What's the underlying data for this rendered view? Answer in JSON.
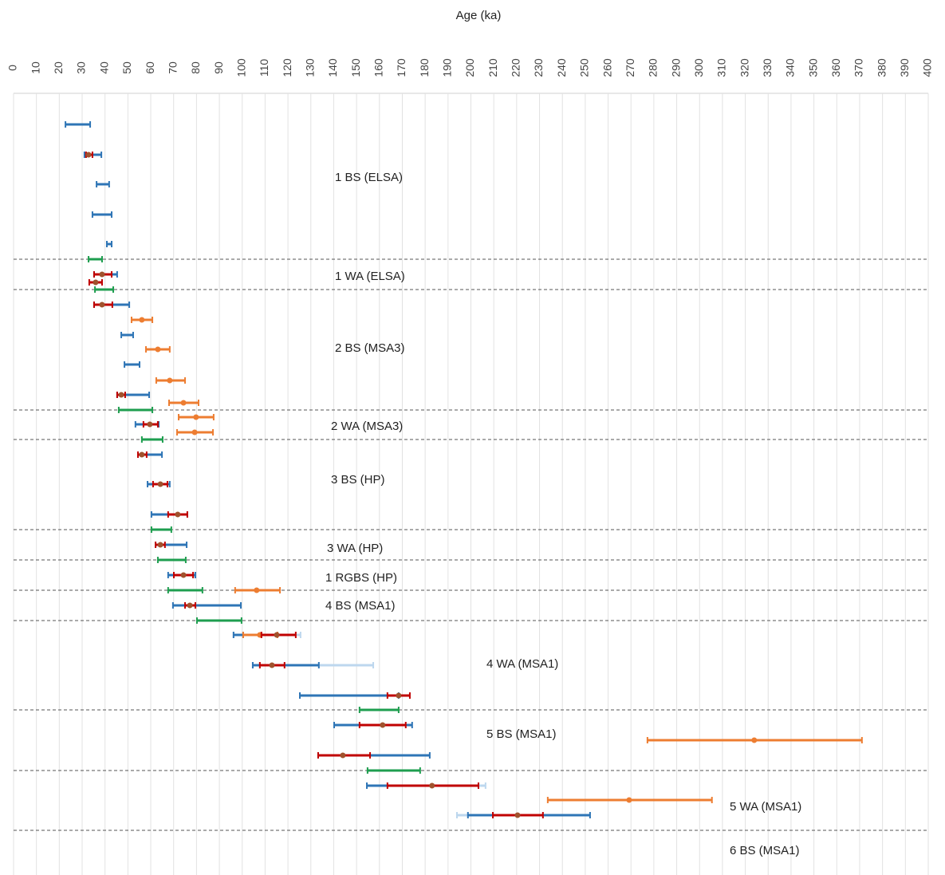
{
  "chart_data": {
    "type": "range",
    "xlabel": "Age (ka)",
    "xlim": [
      0,
      400
    ],
    "xticks": [
      0,
      10,
      20,
      30,
      40,
      50,
      60,
      70,
      80,
      90,
      100,
      110,
      120,
      130,
      140,
      150,
      160,
      170,
      180,
      190,
      200,
      210,
      220,
      230,
      240,
      250,
      260,
      270,
      280,
      290,
      300,
      310,
      320,
      330,
      340,
      350,
      360,
      370,
      380,
      390,
      400
    ],
    "grid": true,
    "annotations": [
      "1 BS (ELSA)",
      "1 WA (ELSA)",
      "2 BS (MSA3)",
      "2 WA (MSA3)",
      "3 BS (HP)",
      "3 WA (HP)",
      "1 RGBS (HP)",
      "4 BS (MSA1)",
      "4 WA (MSA1)",
      "5 BS (MSA1)",
      "5 WA (MSA1)",
      "6 BS (MSA1)"
    ],
    "bars": [
      {
        "color": "#2e75b6",
        "low": 22.7,
        "high": 33.5
      },
      {
        "color": "#2e75b6",
        "low": 31,
        "high": 38.4
      },
      {
        "color": "#c00000",
        "low": 31.7,
        "high": 34.5,
        "point": 32.8
      },
      {
        "color": "#2e75b6",
        "low": 36.3,
        "high": 41.8
      },
      {
        "color": "#2e75b6",
        "low": 34.5,
        "high": 42.9
      },
      {
        "color": "#2e75b6",
        "low": 40.8,
        "high": 42.9
      },
      {
        "color": "#1e9e4f",
        "low": 32.8,
        "high": 38.7
      },
      {
        "color": "#2e75b6",
        "low": 35.2,
        "high": 45.3
      },
      {
        "color": "#c00000",
        "low": 35.2,
        "high": 42.9,
        "point": 38.7
      },
      {
        "color": "#c00000",
        "low": 33.1,
        "high": 38.7,
        "point": 35.9
      },
      {
        "color": "#1e9e4f",
        "low": 35.6,
        "high": 43.6
      },
      {
        "color": "#2e75b6",
        "low": 35.2,
        "high": 50.6
      },
      {
        "color": "#c00000",
        "low": 35.2,
        "high": 43.2,
        "point": 38.7
      },
      {
        "color": "#ed7d31",
        "low": 51.6,
        "high": 60.7,
        "point": 56.1
      },
      {
        "color": "#2e75b6",
        "low": 47.1,
        "high": 52.3
      },
      {
        "color": "#ed7d31",
        "low": 57.9,
        "high": 68.3,
        "point": 63.1
      },
      {
        "color": "#2e75b6",
        "low": 48.5,
        "high": 55.1
      },
      {
        "color": "#ed7d31",
        "low": 62.4,
        "high": 75,
        "point": 68.3
      },
      {
        "color": "#2e75b6",
        "low": 45.3,
        "high": 59.3
      },
      {
        "color": "#c00000",
        "low": 45.3,
        "high": 48.8,
        "point": 47.1
      },
      {
        "color": "#ed7d31",
        "low": 68,
        "high": 80.9,
        "point": 74.3
      },
      {
        "color": "#1e9e4f",
        "low": 46,
        "high": 60.7
      },
      {
        "color": "#ed7d31",
        "low": 72.2,
        "high": 87.5,
        "point": 79.8
      },
      {
        "color": "#2e75b6",
        "low": 53.3,
        "high": 63.5
      },
      {
        "color": "#c00000",
        "low": 56.8,
        "high": 63.1,
        "point": 59.6
      },
      {
        "color": "#ed7d31",
        "low": 71.5,
        "high": 87.2,
        "point": 79.2
      },
      {
        "color": "#1e9e4f",
        "low": 56.1,
        "high": 65.2
      },
      {
        "color": "#2e75b6",
        "low": 54.4,
        "high": 64.9
      },
      {
        "color": "#c00000",
        "low": 54.4,
        "high": 58.2,
        "point": 56.1
      },
      {
        "color": "#2e75b6",
        "low": 58.6,
        "high": 68.3
      },
      {
        "color": "#c00000",
        "low": 61,
        "high": 67.3,
        "point": 64.2
      },
      {
        "color": "#2e75b6",
        "low": 60.3,
        "high": 76
      },
      {
        "color": "#c00000",
        "low": 67.6,
        "high": 76,
        "point": 71.8
      },
      {
        "color": "#1e9e4f",
        "low": 60.3,
        "high": 69
      },
      {
        "color": "#2e75b6",
        "low": 62.1,
        "high": 75.7
      },
      {
        "color": "#c00000",
        "low": 62.1,
        "high": 66.2,
        "point": 64.2
      },
      {
        "color": "#1e9e4f",
        "low": 63.1,
        "high": 75.3
      },
      {
        "color": "#2e75b6",
        "low": 67.6,
        "high": 79.5
      },
      {
        "color": "#c00000",
        "low": 70.1,
        "high": 78.5,
        "point": 74.3
      },
      {
        "color": "#ed7d31",
        "low": 96.9,
        "high": 116.5,
        "point": 106.3
      },
      {
        "color": "#1e9e4f",
        "low": 67.6,
        "high": 82.6
      },
      {
        "color": "#2e75b6",
        "low": 69.7,
        "high": 99.4
      },
      {
        "color": "#c00000",
        "low": 75,
        "high": 79.5,
        "point": 77.1
      },
      {
        "color": "#1e9e4f",
        "low": 80.2,
        "high": 99.7
      },
      {
        "color": "#bdd7ee",
        "low": 96.2,
        "high": 125.5
      },
      {
        "color": "#2e75b6",
        "low": 96.2,
        "high": 100.4
      },
      {
        "color": "#ed7d31",
        "low": 100.4,
        "high": 115.4,
        "point": 107.7
      },
      {
        "color": "#c00000",
        "low": 108.4,
        "high": 123.4,
        "point": 115.1
      },
      {
        "color": "#bdd7ee",
        "low": 104.6,
        "high": 157.3
      },
      {
        "color": "#2e75b6",
        "low": 104.6,
        "high": 133.5
      },
      {
        "color": "#c00000",
        "low": 107.7,
        "high": 118.5,
        "point": 113
      },
      {
        "color": "#2e75b6",
        "low": 125.2,
        "high": 168.4
      },
      {
        "color": "#c00000",
        "low": 163.5,
        "high": 173.3,
        "point": 168.4
      },
      {
        "color": "#1e9e4f",
        "low": 151.3,
        "high": 168.4
      },
      {
        "color": "#2e75b6",
        "low": 140.2,
        "high": 174.3
      },
      {
        "color": "#c00000",
        "low": 151.3,
        "high": 171.5,
        "point": 161.4
      },
      {
        "color": "#ed7d31",
        "low": 277.2,
        "high": 371,
        "point": 323.9
      },
      {
        "color": "#2e75b6",
        "low": 133.2,
        "high": 182
      },
      {
        "color": "#c00000",
        "low": 133.2,
        "high": 155.9,
        "point": 144
      },
      {
        "color": "#1e9e4f",
        "low": 154.8,
        "high": 177.8
      },
      {
        "color": "#bdd7ee",
        "low": 154.5,
        "high": 206.4
      },
      {
        "color": "#2e75b6",
        "low": 154.5,
        "high": 203.3
      },
      {
        "color": "#c00000",
        "low": 163.5,
        "high": 203.3,
        "point": 183
      },
      {
        "color": "#ed7d31",
        "low": 233.6,
        "high": 305.4,
        "point": 269.2
      },
      {
        "color": "#bdd7ee",
        "low": 193.9,
        "high": 252.1
      },
      {
        "color": "#2e75b6",
        "low": 198.7,
        "high": 252.1
      },
      {
        "color": "#c00000",
        "low": 209.6,
        "high": 231.5,
        "point": 220.4
      }
    ]
  }
}
